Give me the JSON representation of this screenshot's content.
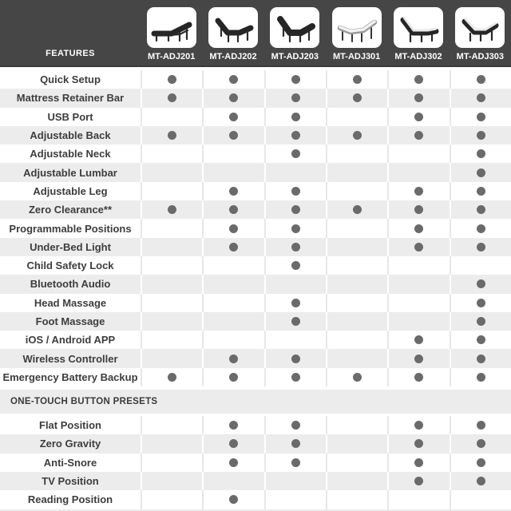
{
  "table": {
    "features_label": "FEATURES",
    "models": [
      {
        "label": "MT-ADJ201",
        "icon": "bed-flat-dark-icon"
      },
      {
        "label": "MT-ADJ202",
        "icon": "bed-head-foot-raised-dark-icon"
      },
      {
        "label": "MT-ADJ203",
        "icon": "bed-head-foot-raised-dark-thick-icon"
      },
      {
        "label": "MT-ADJ301",
        "icon": "bed-contour-light-icon"
      },
      {
        "label": "MT-ADJ302",
        "icon": "bed-head-raised-light-icon"
      },
      {
        "label": "MT-ADJ303",
        "icon": "bed-head-foot-raised-light-icon"
      }
    ],
    "sections": [
      {
        "title": "",
        "rows": [
          {
            "feature": "Quick Setup",
            "availability": [
              true,
              true,
              true,
              true,
              true,
              true
            ]
          },
          {
            "feature": "Mattress Retainer Bar",
            "availability": [
              true,
              true,
              true,
              true,
              true,
              true
            ]
          },
          {
            "feature": "USB Port",
            "availability": [
              false,
              true,
              true,
              false,
              true,
              true
            ]
          },
          {
            "feature": "Adjustable Back",
            "availability": [
              true,
              true,
              true,
              true,
              true,
              true
            ]
          },
          {
            "feature": "Adjustable Neck",
            "availability": [
              false,
              false,
              true,
              false,
              false,
              true
            ]
          },
          {
            "feature": "Adjustable Lumbar",
            "availability": [
              false,
              false,
              false,
              false,
              false,
              true
            ]
          },
          {
            "feature": "Adjustable Leg",
            "availability": [
              false,
              true,
              true,
              false,
              true,
              true
            ]
          },
          {
            "feature": "Zero Clearance**",
            "availability": [
              true,
              true,
              true,
              true,
              true,
              true
            ]
          },
          {
            "feature": "Programmable Positions",
            "availability": [
              false,
              true,
              true,
              false,
              true,
              true
            ]
          },
          {
            "feature": "Under-Bed Light",
            "availability": [
              false,
              true,
              true,
              false,
              true,
              true
            ]
          },
          {
            "feature": "Child Safety Lock",
            "availability": [
              false,
              false,
              true,
              false,
              false,
              false
            ]
          },
          {
            "feature": "Bluetooth Audio",
            "availability": [
              false,
              false,
              false,
              false,
              false,
              true
            ]
          },
          {
            "feature": "Head Massage",
            "availability": [
              false,
              false,
              true,
              false,
              false,
              true
            ]
          },
          {
            "feature": "Foot Massage",
            "availability": [
              false,
              false,
              true,
              false,
              false,
              true
            ]
          },
          {
            "feature": "iOS / Android APP",
            "availability": [
              false,
              false,
              false,
              false,
              true,
              true
            ]
          },
          {
            "feature": "Wireless Controller",
            "availability": [
              false,
              true,
              true,
              false,
              true,
              true
            ]
          },
          {
            "feature": "Emergency Battery Backup",
            "availability": [
              true,
              true,
              true,
              true,
              true,
              true
            ]
          }
        ]
      },
      {
        "title": "ONE-TOUCH BUTTON PRESETS",
        "rows": [
          {
            "feature": "Flat Position",
            "availability": [
              false,
              true,
              true,
              false,
              true,
              true
            ]
          },
          {
            "feature": "Zero Gravity",
            "availability": [
              false,
              true,
              true,
              false,
              true,
              true
            ]
          },
          {
            "feature": "Anti-Snore",
            "availability": [
              false,
              true,
              true,
              false,
              true,
              true
            ]
          },
          {
            "feature": "TV Position",
            "availability": [
              false,
              false,
              false,
              false,
              true,
              true
            ]
          },
          {
            "feature": "Reading Position",
            "availability": [
              false,
              true,
              false,
              false,
              false,
              false
            ]
          }
        ]
      }
    ]
  },
  "colors": {
    "header_bg": "#464646",
    "header_text": "#ffffff",
    "row_bg": "#ffffff",
    "row_alt_bg": "#ececec",
    "separator_on_white": "#e7e7e7",
    "separator_on_gray": "#ffffff",
    "dot": "#6a6a6a",
    "feature_text": "#3d3d3d"
  }
}
